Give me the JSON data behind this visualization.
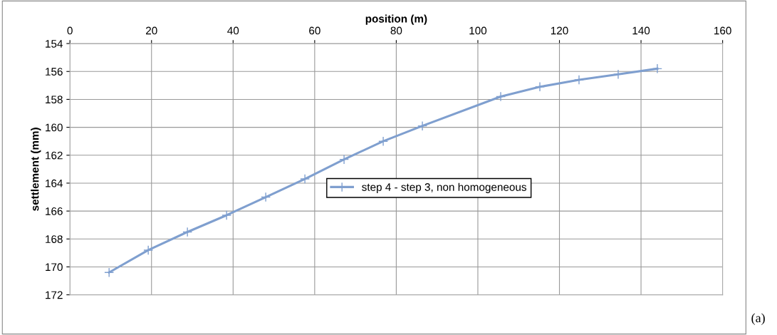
{
  "chart_data": {
    "type": "line",
    "xlabel": "position (m)",
    "ylabel": "settlement (mm)",
    "x": [
      9.6,
      19.2,
      28.8,
      38.4,
      48,
      57.6,
      67.2,
      76.8,
      86.4,
      105.6,
      115.2,
      124.8,
      134.4,
      144
    ],
    "series": [
      {
        "name": "step 4 - step 3, non homogeneous",
        "color": "#7f9fcf",
        "values": [
          170.4,
          168.8,
          167.5,
          166.3,
          165.0,
          163.7,
          162.3,
          161.0,
          159.9,
          157.8,
          157.1,
          156.6,
          156.2,
          155.8
        ]
      }
    ],
    "xlim": [
      0,
      160
    ],
    "xticks": [
      0,
      20,
      40,
      60,
      80,
      100,
      120,
      140,
      160
    ],
    "ylim": [
      172,
      154
    ],
    "yticks": [
      154,
      156,
      158,
      160,
      162,
      164,
      166,
      168,
      170,
      172
    ],
    "grid": true,
    "legend": "center",
    "marker": "cross",
    "line_style": "solid",
    "annotations": [
      "(a)"
    ]
  }
}
